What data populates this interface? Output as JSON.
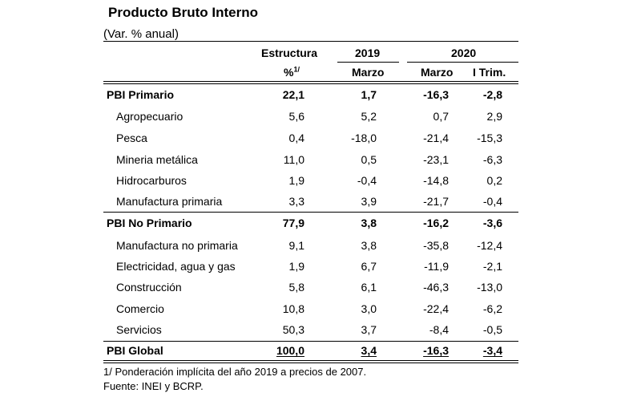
{
  "title": "Producto Bruto Interno",
  "subtitle": "(Var. % anual)",
  "header": {
    "estructura": "Estructura",
    "pct": "%",
    "pct_sup": "1/",
    "year_2019": "2019",
    "year_2020": "2020",
    "marzo_2019": "Marzo",
    "marzo_2020": "Marzo",
    "itrim": "I Trim."
  },
  "rows": [
    {
      "label": "PBI Primario",
      "bold": true,
      "values": [
        "22,1",
        "1,7",
        "-16,3",
        "-2,8"
      ]
    },
    {
      "label": "Agropecuario",
      "bold": false,
      "values": [
        "5,6",
        "5,2",
        "0,7",
        "2,9"
      ]
    },
    {
      "label": "Pesca",
      "bold": false,
      "values": [
        "0,4",
        "-18,0",
        "-21,4",
        "-15,3"
      ]
    },
    {
      "label": "Mineria metálica",
      "bold": false,
      "values": [
        "11,0",
        "0,5",
        "-23,1",
        "-6,3"
      ]
    },
    {
      "label": "Hidrocarburos",
      "bold": false,
      "values": [
        "1,9",
        "-0,4",
        "-14,8",
        "0,2"
      ]
    },
    {
      "label": "Manufactura primaria",
      "bold": false,
      "values": [
        "3,3",
        "3,9",
        "-21,7",
        "-0,4"
      ]
    },
    {
      "label": "PBI No Primario",
      "bold": true,
      "values": [
        "77,9",
        "3,8",
        "-16,2",
        "-3,6"
      ]
    },
    {
      "label": "Manufactura no primaria",
      "bold": false,
      "values": [
        "9,1",
        "3,8",
        "-35,8",
        "-12,4"
      ]
    },
    {
      "label": "Electricidad, agua y gas",
      "bold": false,
      "values": [
        "1,9",
        "6,7",
        "-11,9",
        "-2,1"
      ]
    },
    {
      "label": "Construcción",
      "bold": false,
      "values": [
        "5,8",
        "6,1",
        "-46,3",
        "-13,0"
      ]
    },
    {
      "label": "Comercio",
      "bold": false,
      "values": [
        "10,8",
        "3,0",
        "-22,4",
        "-6,2"
      ]
    },
    {
      "label": "Servicios",
      "bold": false,
      "values": [
        "50,3",
        "3,7",
        "-8,4",
        "-0,5"
      ]
    },
    {
      "label": "PBI Global",
      "bold": true,
      "values": [
        "100,0",
        "3,4",
        "-16,3",
        "-3,4"
      ]
    }
  ],
  "footnotes": {
    "note1": "1/ Ponderación implícita del año 2019 a precios de 2007.",
    "source": "Fuente: INEI y BCRP."
  }
}
